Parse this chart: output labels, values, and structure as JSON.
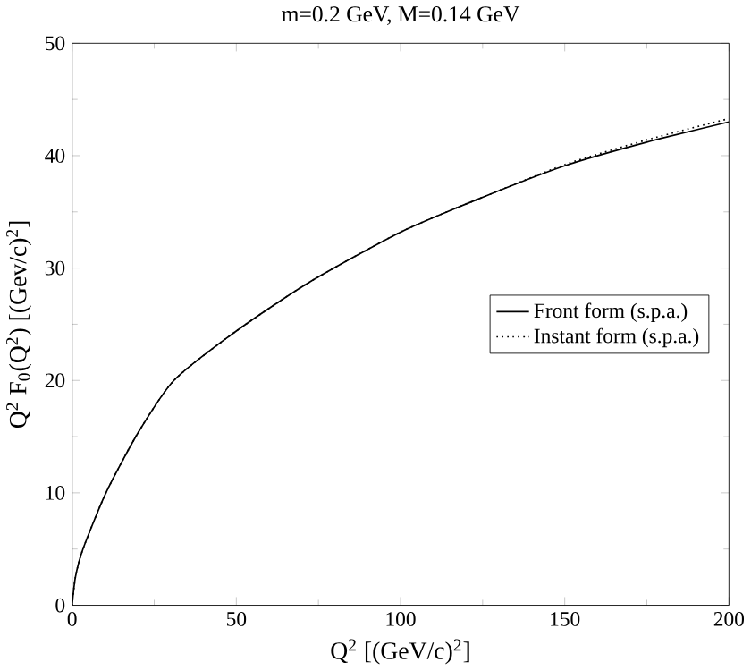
{
  "chart_data": {
    "type": "line",
    "title": "m=0.2 GeV, M=0.14 GeV",
    "xlabel": "Q$^{2}$ [(GeV/c)$^{2}$]",
    "ylabel": "Q$^{2}$ F$_{0}$(Q$^{2}$) [(Gev/c)$^{2}$]",
    "xlim": [
      0,
      200
    ],
    "ylim": [
      0,
      50
    ],
    "xticks": [
      0,
      50,
      100,
      150,
      200
    ],
    "yticks": [
      0,
      10,
      20,
      30,
      40,
      50
    ],
    "legend": "right",
    "grid": false,
    "marker": "none",
    "series": [
      {
        "name": "Front form (s.p.a.)",
        "color": "#000000",
        "line_style": "solid",
        "x": [
          0,
          1,
          3.3,
          10.3,
          20,
          31,
          50,
          72,
          100,
          125,
          150,
          175,
          200
        ],
        "values": [
          0,
          2.5,
          5,
          10,
          15.3,
          20,
          24.4,
          28.7,
          33.2,
          36.3,
          39.1,
          41.2,
          43.0
        ]
      },
      {
        "name": "Instant form (s.p.a.)",
        "color": "#000000",
        "line_style": "dotted",
        "x": [
          0,
          1,
          3.3,
          10.3,
          20,
          31,
          50,
          72,
          100,
          125,
          150,
          175,
          200
        ],
        "values": [
          0,
          2.5,
          5,
          10,
          15.3,
          20,
          24.4,
          28.7,
          33.2,
          36.3,
          39.2,
          41.4,
          43.3
        ]
      }
    ]
  }
}
